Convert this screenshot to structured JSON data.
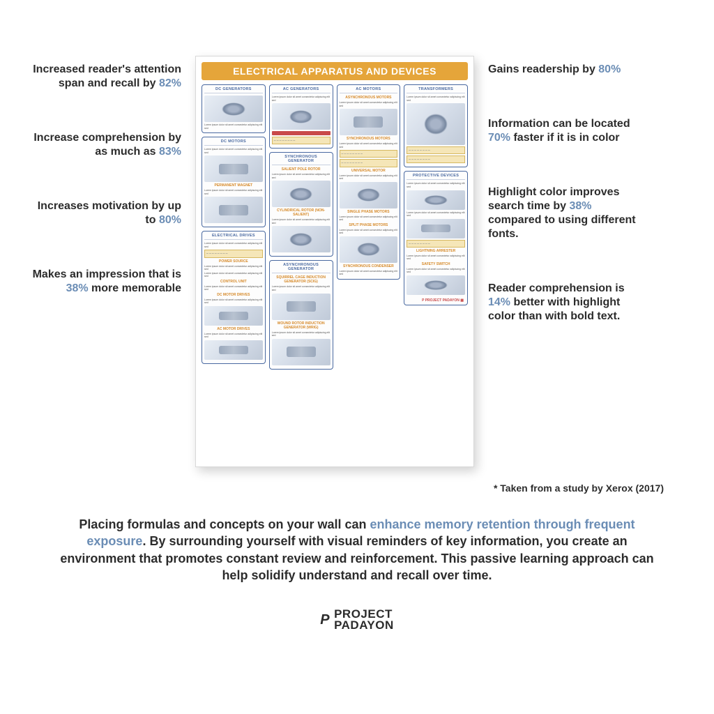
{
  "colors": {
    "text": "#2c2c2c",
    "stat": "#6b8db5",
    "poster_title_bg": "#e5a53a",
    "poster_border": "#4868a0",
    "poster_sub": "#d68a2a",
    "ytable": "#f5e6b8",
    "redbar": "#c94a4a",
    "background": "#ffffff"
  },
  "benefits_left": [
    {
      "pre": "Increased reader's attention span and recall by ",
      "stat": "82%",
      "post": ""
    },
    {
      "pre": "Increase comprehension by as much as ",
      "stat": "83%",
      "post": ""
    },
    {
      "pre": "Increases motivation by up to ",
      "stat": "80%",
      "post": ""
    },
    {
      "pre": "Makes an impression that is ",
      "stat": "38%",
      "post": " more memorable"
    }
  ],
  "benefits_right": [
    {
      "pre": "Gains readership by ",
      "stat": "80%",
      "post": ""
    },
    {
      "pre": "Information can be located ",
      "stat": "70%",
      "post": " faster if it is in color"
    },
    {
      "pre": "Highlight color improves search time by ",
      "stat": "38%",
      "post": " compared to using different fonts."
    },
    {
      "pre": "Reader comprehension is ",
      "stat": "14%",
      "post": " better with highlight color than with bold text."
    }
  ],
  "poster": {
    "title": "ELECTRICAL APPARATUS AND DEVICES",
    "columns": [
      {
        "sections": [
          {
            "title": "DC GENERATORS",
            "blocks": [
              "diag",
              "txt"
            ]
          },
          {
            "title": "DC MOTORS",
            "blocks": [
              "txt",
              "diag-rect",
              "sub:PERMANENT MAGNET",
              "txt",
              "diag-rect"
            ]
          },
          {
            "title": "ELECTRICAL DRIVES",
            "blocks": [
              "txt",
              "ytable",
              "sub:POWER SOURCE",
              "txt",
              "txt",
              "sub:CONTROL UNIT",
              "txt",
              "sub:DC MOTOR DRIVES",
              "txt",
              "diag-rect-short",
              "sub:AC MOTOR DRIVES",
              "txt",
              "diag-rect-short"
            ]
          }
        ]
      },
      {
        "sections": [
          {
            "title": "AC GENERATORS",
            "blocks": [
              "txt",
              "diag",
              "redbar",
              "ytable"
            ]
          },
          {
            "title": "SYNCHRONOUS GENERATOR",
            "blocks": [
              "sub:SALIENT POLE ROTOR",
              "txt",
              "diag",
              "sub:CYLINDRICAL ROTOR (NON-SALIENT)",
              "txt",
              "diag"
            ]
          },
          {
            "title": "ASYNCHRONOUS GENERATOR",
            "blocks": [
              "sub:SQUIRREL CAGE INDUCTION GENERATOR (SCIG)",
              "txt",
              "diag-rect",
              "sub:WOUND ROTOR INDUCTION GENERATOR (WRIG)",
              "txt",
              "diag-rect"
            ]
          }
        ]
      },
      {
        "sections": [
          {
            "title": "AC MOTORS",
            "blocks": [
              "sub:ASYNCHRONOUS MOTORS",
              "txt",
              "diag-rect",
              "sub:SYNCHRONOUS MOTORS",
              "txt",
              "ytable",
              "ytable",
              "sub:UNIVERSAL MOTOR",
              "txt",
              "diag",
              "sub:SINGLE PHASE MOTORS",
              "txt",
              "sub:SPLIT PHASE MOTORS",
              "txt",
              "diag",
              "sub:SYNCHRONOUS CONDENSER",
              "txt"
            ]
          }
        ]
      },
      {
        "sections": [
          {
            "title": "TRANSFORMERS",
            "blocks": [
              "txt",
              "diag-tall",
              "ytable",
              "ytable"
            ]
          },
          {
            "title": "PROTECTIVE DEVICES",
            "blocks": [
              "txt",
              "diag-short",
              "txt",
              "diag-rect-short",
              "ytable",
              "sub:LIGHTNING ARRESTER",
              "txt",
              "sub:SAFETY SWITCH",
              "txt",
              "diag-short",
              "logo"
            ]
          }
        ]
      }
    ]
  },
  "citation": "* Taken from a study by Xerox (2017)",
  "bottom": {
    "pre": "Placing formulas and concepts on your wall can ",
    "hl": "enhance memory retention through frequent exposure",
    "post": ". By surrounding yourself with visual reminders of key information, you create an environment that promotes constant review and reinforcement. This passive learning approach can help solidify understand and recall over time."
  },
  "brand": {
    "line1": "PROJECT",
    "line2": "PADAYON"
  }
}
